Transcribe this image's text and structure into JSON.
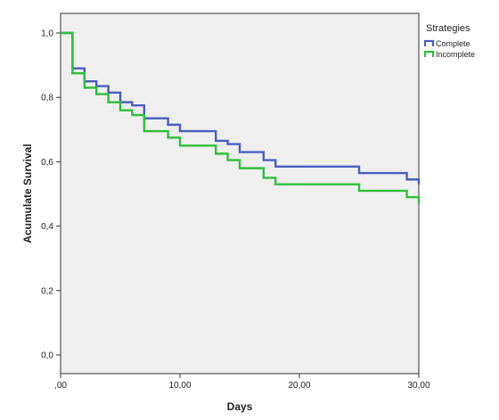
{
  "chart_data": {
    "type": "line",
    "step": true,
    "xlabel": "Days",
    "ylabel": "Acumulate Survival",
    "xlim": [
      0,
      30
    ],
    "ylim": [
      0,
      1.0
    ],
    "x_ticks": [
      0,
      10,
      20,
      30
    ],
    "x_tick_labels": [
      ",00",
      "10,00",
      "20,00",
      "30,00"
    ],
    "y_ticks": [
      0,
      0.2,
      0.4,
      0.6,
      0.8,
      1.0
    ],
    "y_tick_labels": [
      "0,0",
      "0,2",
      "0,4",
      "0,6",
      "0,8",
      "1,0"
    ],
    "grid": false,
    "plot_background": "#efefef",
    "legend": {
      "title": "Strategies",
      "placement": "top-right-outside"
    },
    "series": [
      {
        "name": "Complete",
        "color": "#4a5ec0",
        "points": [
          [
            0,
            1.0
          ],
          [
            1,
            0.89
          ],
          [
            2,
            0.85
          ],
          [
            3,
            0.835
          ],
          [
            4,
            0.815
          ],
          [
            5,
            0.785
          ],
          [
            6,
            0.775
          ],
          [
            7,
            0.735
          ],
          [
            9,
            0.715
          ],
          [
            10,
            0.695
          ],
          [
            13,
            0.665
          ],
          [
            14,
            0.655
          ],
          [
            15,
            0.63
          ],
          [
            17,
            0.605
          ],
          [
            18,
            0.585
          ],
          [
            25,
            0.565
          ],
          [
            29,
            0.545
          ],
          [
            30,
            0.53
          ]
        ]
      },
      {
        "name": "Incomplete",
        "color": "#2fbf3a",
        "points": [
          [
            0,
            1.0
          ],
          [
            1,
            0.875
          ],
          [
            2,
            0.83
          ],
          [
            3,
            0.81
          ],
          [
            4,
            0.785
          ],
          [
            5,
            0.76
          ],
          [
            6,
            0.745
          ],
          [
            7,
            0.695
          ],
          [
            9,
            0.675
          ],
          [
            10,
            0.65
          ],
          [
            13,
            0.625
          ],
          [
            14,
            0.605
          ],
          [
            15,
            0.58
          ],
          [
            17,
            0.55
          ],
          [
            18,
            0.53
          ],
          [
            25,
            0.51
          ],
          [
            29,
            0.49
          ],
          [
            30,
            0.47
          ]
        ]
      }
    ]
  }
}
